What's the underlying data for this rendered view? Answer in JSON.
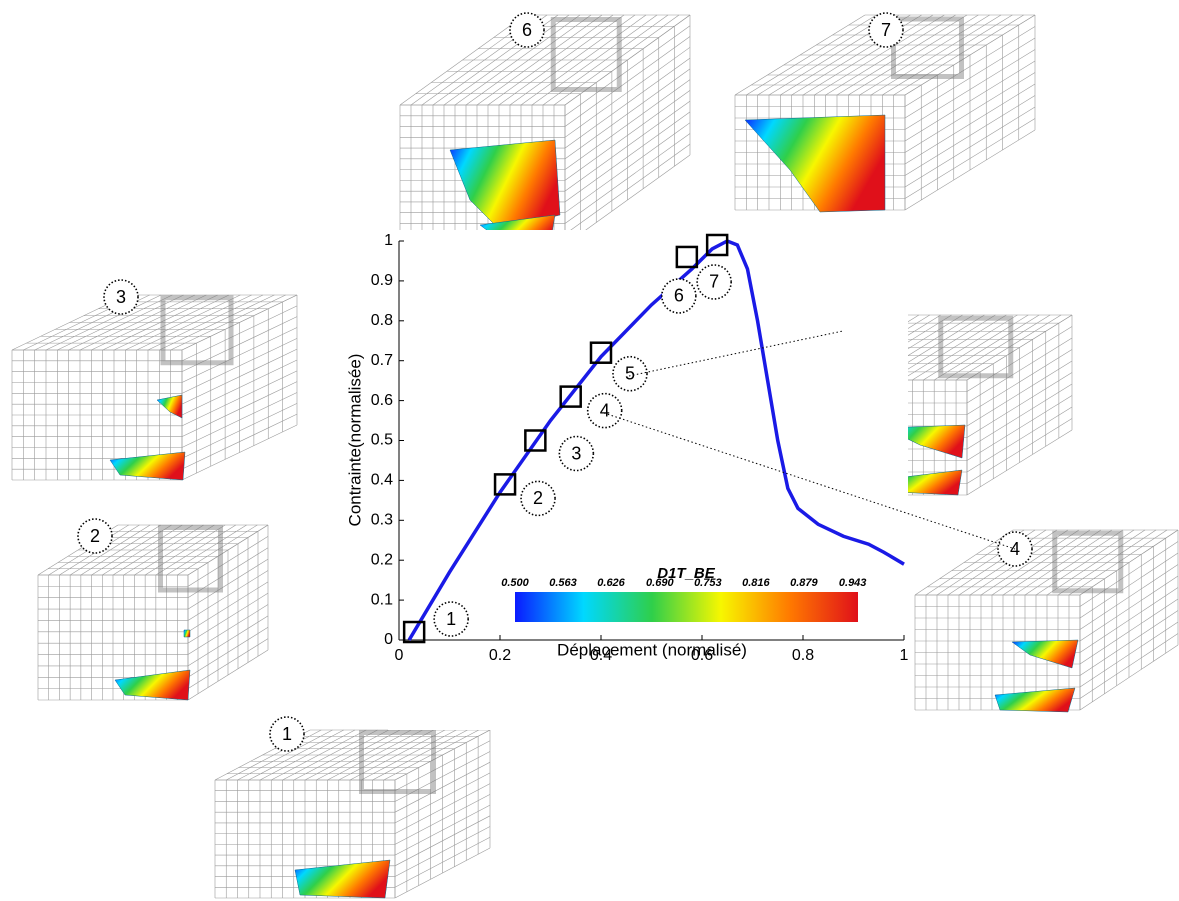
{
  "chart_data": {
    "type": "line",
    "x_label": "Déplacement (normalisé)",
    "y_label": "Contrainte(normalisée)",
    "xlim": [
      0,
      1
    ],
    "ylim": [
      0,
      1
    ],
    "xticks": [
      0,
      0.2,
      0.4,
      0.6,
      0.8,
      1
    ],
    "yticks": [
      0,
      0.1,
      0.2,
      0.3,
      0.4,
      0.5,
      0.6,
      0.7,
      0.8,
      0.9,
      1
    ],
    "series": [
      {
        "color": "#1a1ae6",
        "x": [
          0.02,
          0.1,
          0.2,
          0.3,
          0.4,
          0.5,
          0.58,
          0.62,
          0.65,
          0.67,
          0.69,
          0.71,
          0.73,
          0.75,
          0.77,
          0.79,
          0.83,
          0.88,
          0.93,
          0.96,
          1.0
        ],
        "values": [
          0.0,
          0.17,
          0.37,
          0.55,
          0.71,
          0.84,
          0.93,
          0.98,
          1.0,
          0.99,
          0.93,
          0.8,
          0.65,
          0.5,
          0.38,
          0.33,
          0.29,
          0.26,
          0.24,
          0.22,
          0.19
        ]
      }
    ],
    "markers": {
      "x": [
        0.03,
        0.21,
        0.27,
        0.34,
        0.4,
        0.57,
        0.63
      ],
      "y": [
        0.02,
        0.39,
        0.5,
        0.61,
        0.72,
        0.96,
        0.99
      ],
      "labels": [
        "1",
        "2",
        "3",
        "4",
        "5",
        "6",
        "7"
      ]
    },
    "colorbar": {
      "title": "D1T_BE",
      "clim": [
        0.5,
        0.95
      ],
      "ticks": [
        {
          "value": 0.5,
          "label": "0.500"
        },
        {
          "value": 0.563,
          "label": "0.563"
        },
        {
          "value": 0.626,
          "label": "0.626"
        },
        {
          "value": 0.69,
          "label": "0.690"
        },
        {
          "value": 0.753,
          "label": "0.753"
        },
        {
          "value": 0.816,
          "label": "0.816"
        },
        {
          "value": 0.879,
          "label": "0.879"
        },
        {
          "value": 0.943,
          "label": "0.943"
        }
      ],
      "colors": [
        "#0a1aff",
        "#00d8ff",
        "#2fcf4a",
        "#f7f700",
        "#ff7a00",
        "#e0101a"
      ]
    },
    "snapshot_labels": [
      "6",
      "7",
      "3",
      "5",
      "2",
      "4",
      "1"
    ]
  }
}
